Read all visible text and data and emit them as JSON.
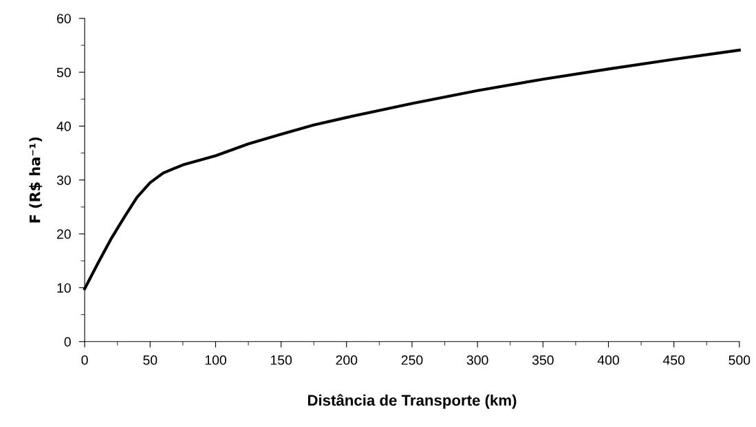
{
  "chart_data": {
    "type": "line",
    "xlabel": "Distância de Transporte (km)",
    "ylabel": "F (R$ ha⁻¹)",
    "x": [
      0,
      10,
      20,
      30,
      40,
      50,
      60,
      75,
      100,
      125,
      150,
      175,
      200,
      250,
      300,
      350,
      400,
      450,
      500
    ],
    "series": [
      {
        "color": "#000000",
        "values": [
          9.8,
          14.5,
          19,
          23,
          26.8,
          29.5,
          31.3,
          32.8,
          34.5,
          36.7,
          38.5,
          40.2,
          41.6,
          44.2,
          46.6,
          48.7,
          50.6,
          52.4,
          54.1
        ]
      }
    ],
    "xlim": [
      0,
      500
    ],
    "ylim": [
      0,
      60
    ],
    "xticks": [
      0,
      50,
      100,
      150,
      200,
      250,
      300,
      350,
      400,
      450,
      500
    ],
    "yticks": [
      0,
      10,
      20,
      30,
      40,
      50,
      60
    ],
    "grid": false,
    "legend": false,
    "marker": "none",
    "line_style": "solid"
  }
}
